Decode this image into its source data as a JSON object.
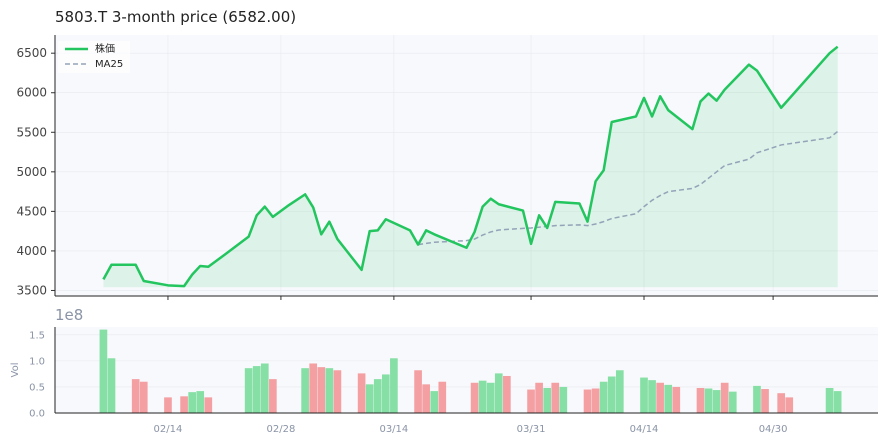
{
  "colors": {
    "price_line": "#22c55e",
    "price_fill": "#22c55e",
    "ma_line": "#94a3b8",
    "vol_up": "#86dfa5",
    "vol_down": "#f4a0a3",
    "panel_bg": "#f8f9fc",
    "grid": "#e6e9ef"
  },
  "chart_data": [
    {
      "type": "line",
      "title": "5803.T  3-month price (6582.00)",
      "ylim": [
        3430,
        6730
      ],
      "yticks": [
        3500,
        4000,
        4500,
        5000,
        5500,
        6000,
        6500
      ],
      "grid": true,
      "legend": "top-left",
      "series": [
        {
          "name": "株価",
          "style": "solid-fill",
          "points": [
            [
              "2025-02-06",
              3640
            ],
            [
              "2025-02-07",
              3825
            ],
            [
              "2025-02-10",
              3825
            ],
            [
              "2025-02-11",
              3620
            ],
            [
              "2025-02-14",
              3565
            ],
            [
              "2025-02-16",
              3555
            ],
            [
              "2025-02-17",
              3700
            ],
            [
              "2025-02-18",
              3810
            ],
            [
              "2025-02-19",
              3800
            ],
            [
              "2025-02-21",
              3950
            ],
            [
              "2025-02-24",
              4180
            ],
            [
              "2025-02-25",
              4450
            ],
            [
              "2025-02-26",
              4560
            ],
            [
              "2025-02-27",
              4430
            ],
            [
              "2025-03-01",
              4580
            ],
            [
              "2025-03-03",
              4715
            ],
            [
              "2025-03-04",
              4550
            ],
            [
              "2025-03-05",
              4210
            ],
            [
              "2025-03-06",
              4370
            ],
            [
              "2025-03-07",
              4150
            ],
            [
              "2025-03-10",
              3760
            ],
            [
              "2025-03-11",
              4250
            ],
            [
              "2025-03-12",
              4260
            ],
            [
              "2025-03-13",
              4400
            ],
            [
              "2025-03-16",
              4260
            ],
            [
              "2025-03-17",
              4080
            ],
            [
              "2025-03-18",
              4260
            ],
            [
              "2025-03-19",
              4210
            ],
            [
              "2025-03-23",
              4040
            ],
            [
              "2025-03-24",
              4240
            ],
            [
              "2025-03-25",
              4560
            ],
            [
              "2025-03-26",
              4660
            ],
            [
              "2025-03-27",
              4590
            ],
            [
              "2025-03-30",
              4510
            ],
            [
              "2025-03-31",
              4090
            ],
            [
              "2025-04-01",
              4450
            ],
            [
              "2025-04-02",
              4290
            ],
            [
              "2025-04-03",
              4620
            ],
            [
              "2025-04-06",
              4600
            ],
            [
              "2025-04-07",
              4370
            ],
            [
              "2025-04-08",
              4880
            ],
            [
              "2025-04-09",
              5020
            ],
            [
              "2025-04-10",
              5630
            ],
            [
              "2025-04-13",
              5700
            ],
            [
              "2025-04-14",
              5935
            ],
            [
              "2025-04-15",
              5700
            ],
            [
              "2025-04-16",
              5955
            ],
            [
              "2025-04-17",
              5780
            ],
            [
              "2025-04-20",
              5540
            ],
            [
              "2025-04-21",
              5890
            ],
            [
              "2025-04-22",
              5990
            ],
            [
              "2025-04-23",
              5900
            ],
            [
              "2025-04-24",
              6040
            ],
            [
              "2025-04-27",
              6355
            ],
            [
              "2025-04-28",
              6280
            ],
            [
              "2025-05-01",
              5810
            ],
            [
              "2025-05-07",
              6500
            ],
            [
              "2025-05-08",
              6582
            ]
          ]
        },
        {
          "name": "MA25",
          "style": "dashed",
          "points": [
            [
              "2025-03-17",
              4080
            ],
            [
              "2025-03-18",
              4095
            ],
            [
              "2025-03-19",
              4110
            ],
            [
              "2025-03-23",
              4130
            ],
            [
              "2025-03-24",
              4150
            ],
            [
              "2025-03-25",
              4200
            ],
            [
              "2025-03-26",
              4240
            ],
            [
              "2025-03-27",
              4265
            ],
            [
              "2025-03-30",
              4285
            ],
            [
              "2025-03-31",
              4290
            ],
            [
              "2025-04-01",
              4300
            ],
            [
              "2025-04-02",
              4310
            ],
            [
              "2025-04-03",
              4320
            ],
            [
              "2025-04-06",
              4330
            ],
            [
              "2025-04-07",
              4320
            ],
            [
              "2025-04-08",
              4340
            ],
            [
              "2025-04-09",
              4370
            ],
            [
              "2025-04-10",
              4410
            ],
            [
              "2025-04-13",
              4470
            ],
            [
              "2025-04-14",
              4560
            ],
            [
              "2025-04-15",
              4640
            ],
            [
              "2025-04-16",
              4700
            ],
            [
              "2025-04-17",
              4750
            ],
            [
              "2025-04-20",
              4790
            ],
            [
              "2025-04-21",
              4840
            ],
            [
              "2025-04-22",
              4920
            ],
            [
              "2025-04-23",
              5000
            ],
            [
              "2025-04-24",
              5080
            ],
            [
              "2025-04-27",
              5160
            ],
            [
              "2025-04-28",
              5240
            ],
            [
              "2025-05-01",
              5340
            ],
            [
              "2025-05-07",
              5430
            ],
            [
              "2025-05-08",
              5510
            ]
          ]
        }
      ]
    },
    {
      "type": "bar",
      "ylabel": "Vol",
      "offset_label": "1e8",
      "ylim": [
        0,
        1.65
      ],
      "yticks": [
        0.0,
        0.5,
        1.0,
        1.5
      ],
      "ytick_labels": [
        "0.0",
        "0.5",
        "1.0",
        "1.5"
      ],
      "xticks": [
        "2025-02-14",
        "2025-02-28",
        "2025-03-14",
        "2025-03-31",
        "2025-04-14",
        "2025-04-30"
      ],
      "xtick_labels": [
        "02/14",
        "02/28",
        "03/14",
        "03/31",
        "04/14",
        "04/30"
      ],
      "bars": [
        [
          "2025-02-06",
          1.6,
          "up"
        ],
        [
          "2025-02-07",
          1.05,
          "up"
        ],
        [
          "2025-02-10",
          0.65,
          "down"
        ],
        [
          "2025-02-11",
          0.6,
          "down"
        ],
        [
          "2025-02-14",
          0.3,
          "down"
        ],
        [
          "2025-02-16",
          0.32,
          "down"
        ],
        [
          "2025-02-17",
          0.4,
          "up"
        ],
        [
          "2025-02-18",
          0.42,
          "up"
        ],
        [
          "2025-02-19",
          0.3,
          "down"
        ],
        [
          "2025-02-24",
          0.86,
          "up"
        ],
        [
          "2025-02-25",
          0.9,
          "up"
        ],
        [
          "2025-02-26",
          0.95,
          "up"
        ],
        [
          "2025-02-27",
          0.65,
          "down"
        ],
        [
          "2025-03-03",
          0.86,
          "up"
        ],
        [
          "2025-03-04",
          0.95,
          "down"
        ],
        [
          "2025-03-05",
          0.88,
          "down"
        ],
        [
          "2025-03-06",
          0.86,
          "up"
        ],
        [
          "2025-03-07",
          0.82,
          "down"
        ],
        [
          "2025-03-10",
          0.76,
          "down"
        ],
        [
          "2025-03-11",
          0.55,
          "up"
        ],
        [
          "2025-03-12",
          0.65,
          "up"
        ],
        [
          "2025-03-13",
          0.74,
          "up"
        ],
        [
          "2025-03-14",
          1.05,
          "up"
        ],
        [
          "2025-03-17",
          0.82,
          "down"
        ],
        [
          "2025-03-18",
          0.55,
          "down"
        ],
        [
          "2025-03-19",
          0.42,
          "up"
        ],
        [
          "2025-03-20",
          0.6,
          "down"
        ],
        [
          "2025-03-24",
          0.58,
          "down"
        ],
        [
          "2025-03-25",
          0.62,
          "up"
        ],
        [
          "2025-03-26",
          0.58,
          "up"
        ],
        [
          "2025-03-27",
          0.76,
          "up"
        ],
        [
          "2025-03-28",
          0.71,
          "down"
        ],
        [
          "2025-03-31",
          0.45,
          "down"
        ],
        [
          "2025-04-01",
          0.58,
          "down"
        ],
        [
          "2025-04-02",
          0.48,
          "up"
        ],
        [
          "2025-04-03",
          0.58,
          "down"
        ],
        [
          "2025-04-04",
          0.5,
          "up"
        ],
        [
          "2025-04-07",
          0.45,
          "down"
        ],
        [
          "2025-04-08",
          0.47,
          "down"
        ],
        [
          "2025-04-09",
          0.6,
          "up"
        ],
        [
          "2025-04-10",
          0.7,
          "up"
        ],
        [
          "2025-04-11",
          0.82,
          "up"
        ],
        [
          "2025-04-14",
          0.68,
          "up"
        ],
        [
          "2025-04-15",
          0.63,
          "up"
        ],
        [
          "2025-04-16",
          0.58,
          "down"
        ],
        [
          "2025-04-17",
          0.54,
          "up"
        ],
        [
          "2025-04-18",
          0.5,
          "down"
        ],
        [
          "2025-04-21",
          0.48,
          "down"
        ],
        [
          "2025-04-22",
          0.47,
          "up"
        ],
        [
          "2025-04-23",
          0.44,
          "up"
        ],
        [
          "2025-04-24",
          0.58,
          "down"
        ],
        [
          "2025-04-25",
          0.41,
          "up"
        ],
        [
          "2025-04-28",
          0.52,
          "up"
        ],
        [
          "2025-04-29",
          0.46,
          "down"
        ],
        [
          "2025-05-01",
          0.38,
          "down"
        ],
        [
          "2025-05-02",
          0.3,
          "down"
        ],
        [
          "2025-05-07",
          0.48,
          "up"
        ],
        [
          "2025-05-08",
          0.42,
          "up"
        ]
      ]
    }
  ]
}
